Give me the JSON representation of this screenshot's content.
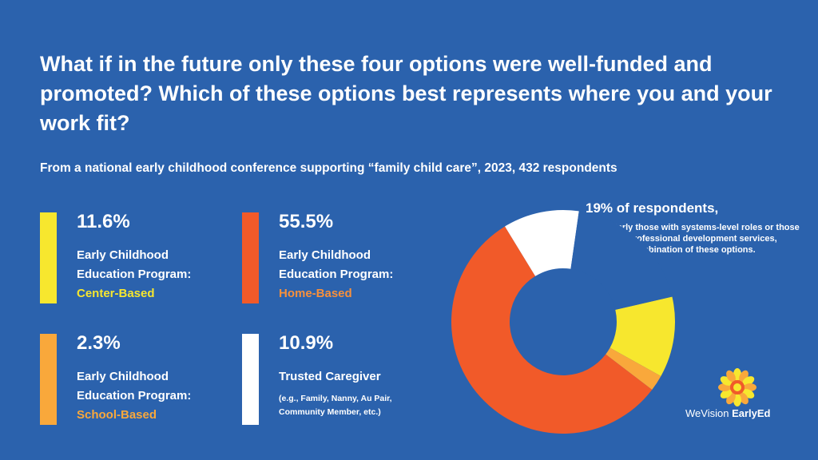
{
  "title": "What if in the future only these four options were well-funded and promoted? Which of these options best represents where you and your work fit?",
  "subtitle": "From a national early childhood conference supporting “family child care”, 2023, 432 respondents",
  "cards": [
    {
      "pct": "11.6%",
      "line1": "Early Childhood",
      "line2": "Education Program:",
      "highlight": "Center-Based",
      "color": "#f7e72e"
    },
    {
      "pct": "55.5%",
      "line1": "Early Childhood",
      "line2": "Education Program:",
      "highlight": "Home-Based",
      "color": "#f15a29",
      "highlight_color": "#f7903c"
    },
    {
      "pct": "2.3%",
      "line1": "Early Childhood",
      "line2": "Education Program:",
      "highlight": "School-Based",
      "color": "#f9a83b"
    },
    {
      "pct": "10.9%",
      "line1": "Trusted Caregiver",
      "note": "(e.g., Family, Nanny, Au Pair, Community Member, etc.)",
      "color": "#ffffff"
    }
  ],
  "callout": {
    "headline": "19% of respondents,",
    "body": "particularly those with systems-level roles or those providing professional development services, selected a combination of these options."
  },
  "logo": {
    "brand_part1": "WeVision",
    "brand_part2": "EarlyEd",
    "icon": "sun-flower-icon"
  },
  "chart_data": {
    "type": "pie",
    "donut": true,
    "categories": [
      "Center-Based",
      "School-Based",
      "Home-Based",
      "Trusted Caregiver",
      "Combination"
    ],
    "values": [
      11.6,
      2.3,
      55.5,
      10.9,
      19.0
    ],
    "colors": [
      "#f7e72e",
      "#f9a83b",
      "#f15a29",
      "#ffffff",
      "#2b62ad"
    ],
    "start_angle_deg": 77,
    "direction": "clockwise",
    "title": "",
    "legend": "none"
  }
}
